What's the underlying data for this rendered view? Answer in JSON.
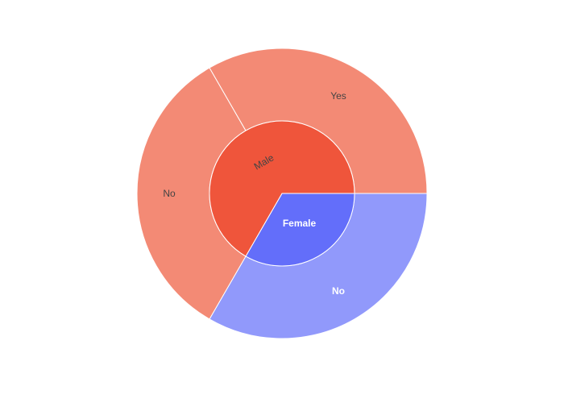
{
  "chart_data": {
    "type": "sunburst",
    "nodes": [
      {
        "id": "male",
        "label": "Male",
        "parent": "",
        "value": 2,
        "color": "#EF553B",
        "label_color": "#444444",
        "label_weight": "normal"
      },
      {
        "id": "female",
        "label": "Female",
        "parent": "",
        "value": 1,
        "color": "#636EFA",
        "label_color": "#ffffff",
        "label_weight": "bold"
      },
      {
        "id": "male-yes",
        "label": "Yes",
        "parent": "male",
        "value": 1,
        "color": "#F38A75",
        "label_color": "#444444",
        "label_weight": "normal"
      },
      {
        "id": "male-no",
        "label": "No",
        "parent": "male",
        "value": 1,
        "color": "#F38A75",
        "label_color": "#444444",
        "label_weight": "normal"
      },
      {
        "id": "female-no",
        "label": "No",
        "parent": "female",
        "value": 1,
        "color": "#9199FB",
        "label_color": "#ffffff",
        "label_weight": "bold"
      }
    ]
  }
}
